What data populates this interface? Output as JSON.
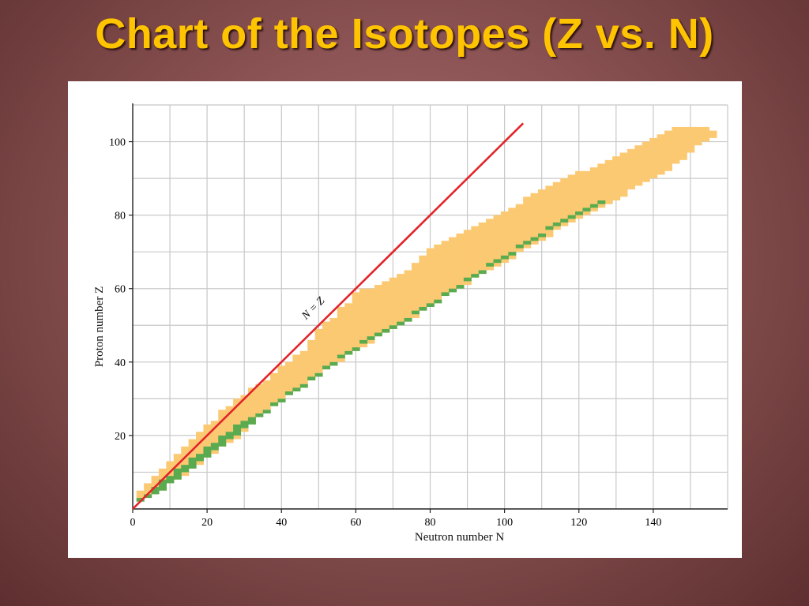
{
  "slide": {
    "title": "Chart of the Isotopes (Z vs. N)"
  },
  "colors": {
    "stable": "#5aab4f",
    "unstable": "#fcc973",
    "nz_line": "#e2242a",
    "grid": "#c8c8c8",
    "title": "#ffc400"
  },
  "chart_data": {
    "type": "scatter",
    "title": "",
    "xlabel": "Neutron number N",
    "ylabel": "Proton number Z",
    "xlim": [
      0,
      160
    ],
    "ylim": [
      0,
      110
    ],
    "x_ticks": [
      0,
      20,
      40,
      60,
      80,
      100,
      120,
      140
    ],
    "y_ticks": [
      20,
      40,
      60,
      80,
      100
    ],
    "grid": true,
    "reference_line": {
      "label": "N = Z",
      "from": [
        0,
        0
      ],
      "to": [
        105,
        105
      ]
    },
    "bands": [
      {
        "name": "unstable",
        "points": [
          [
            2,
            2,
            5
          ],
          [
            4,
            3,
            7
          ],
          [
            6,
            4,
            9
          ],
          [
            8,
            5,
            11
          ],
          [
            10,
            7,
            13
          ],
          [
            12,
            8,
            15
          ],
          [
            14,
            9,
            17
          ],
          [
            16,
            11,
            19
          ],
          [
            18,
            12,
            21
          ],
          [
            20,
            14,
            23
          ],
          [
            22,
            15,
            24
          ],
          [
            24,
            17,
            27
          ],
          [
            26,
            18,
            28
          ],
          [
            28,
            19,
            30
          ],
          [
            30,
            21,
            31
          ],
          [
            32,
            23,
            33
          ],
          [
            34,
            25,
            34
          ],
          [
            36,
            27,
            35
          ],
          [
            38,
            28,
            37
          ],
          [
            40,
            30,
            39
          ],
          [
            42,
            31,
            40
          ],
          [
            44,
            32,
            42
          ],
          [
            46,
            33,
            43
          ],
          [
            48,
            35,
            46
          ],
          [
            50,
            37,
            49
          ],
          [
            52,
            38,
            51
          ],
          [
            54,
            39,
            52
          ],
          [
            56,
            40,
            55
          ],
          [
            58,
            42,
            56
          ],
          [
            60,
            43,
            59
          ],
          [
            62,
            44,
            60
          ],
          [
            64,
            45,
            60
          ],
          [
            66,
            47,
            61
          ],
          [
            68,
            48,
            62
          ],
          [
            70,
            49,
            63
          ],
          [
            72,
            50,
            64
          ],
          [
            74,
            51,
            65
          ],
          [
            76,
            52,
            67
          ],
          [
            78,
            54,
            69
          ],
          [
            80,
            55,
            71
          ],
          [
            82,
            56,
            72
          ],
          [
            84,
            58,
            73
          ],
          [
            86,
            59,
            74
          ],
          [
            88,
            60,
            75
          ],
          [
            90,
            61,
            76
          ],
          [
            92,
            63,
            77
          ],
          [
            94,
            64,
            78
          ],
          [
            96,
            65,
            79
          ],
          [
            98,
            66,
            80
          ],
          [
            100,
            67,
            81
          ],
          [
            102,
            68,
            82
          ],
          [
            104,
            70,
            83
          ],
          [
            106,
            71,
            85
          ],
          [
            108,
            72,
            86
          ],
          [
            110,
            73,
            87
          ],
          [
            112,
            74,
            88
          ],
          [
            114,
            76,
            89
          ],
          [
            116,
            77,
            90
          ],
          [
            118,
            78,
            91
          ],
          [
            120,
            79,
            92
          ],
          [
            122,
            80,
            92
          ],
          [
            124,
            81,
            93
          ],
          [
            126,
            82,
            94
          ],
          [
            128,
            83,
            95
          ],
          [
            130,
            84,
            96
          ],
          [
            132,
            85,
            97
          ],
          [
            134,
            87,
            98
          ],
          [
            136,
            88,
            99
          ],
          [
            138,
            89,
            100
          ],
          [
            140,
            90,
            101
          ],
          [
            142,
            91,
            102
          ],
          [
            144,
            92,
            103
          ],
          [
            146,
            94,
            104
          ],
          [
            148,
            95,
            104
          ],
          [
            150,
            97,
            104
          ],
          [
            152,
            99,
            104
          ],
          [
            154,
            100,
            104
          ],
          [
            156,
            101,
            103
          ]
        ]
      },
      {
        "name": "stable",
        "points": [
          [
            2,
            2,
            3
          ],
          [
            4,
            3,
            4
          ],
          [
            6,
            4,
            6
          ],
          [
            8,
            5,
            8
          ],
          [
            10,
            7,
            9
          ],
          [
            12,
            8,
            11
          ],
          [
            14,
            10,
            12
          ],
          [
            16,
            11,
            14
          ],
          [
            18,
            13,
            15
          ],
          [
            20,
            14,
            17
          ],
          [
            22,
            16,
            18
          ],
          [
            24,
            17,
            20
          ],
          [
            26,
            19,
            21
          ],
          [
            28,
            20,
            23
          ],
          [
            30,
            22,
            24
          ],
          [
            32,
            23,
            25
          ],
          [
            34,
            25,
            26
          ],
          [
            36,
            26,
            27
          ],
          [
            38,
            28,
            29
          ],
          [
            40,
            29,
            30
          ],
          [
            42,
            31,
            32
          ],
          [
            44,
            32,
            33
          ],
          [
            46,
            33,
            34
          ],
          [
            48,
            35,
            36
          ],
          [
            50,
            36,
            37
          ],
          [
            52,
            38,
            39
          ],
          [
            54,
            39,
            40
          ],
          [
            56,
            41,
            42
          ],
          [
            58,
            42,
            43
          ],
          [
            60,
            43,
            44
          ],
          [
            62,
            45,
            46
          ],
          [
            64,
            46,
            47
          ],
          [
            66,
            47,
            48
          ],
          [
            68,
            48,
            49
          ],
          [
            70,
            49,
            50
          ],
          [
            72,
            50,
            51
          ],
          [
            74,
            51,
            52
          ],
          [
            76,
            53,
            54
          ],
          [
            78,
            54,
            55
          ],
          [
            80,
            55,
            56
          ],
          [
            82,
            56,
            57
          ],
          [
            84,
            58,
            59
          ],
          [
            86,
            59,
            60
          ],
          [
            88,
            60,
            61
          ],
          [
            90,
            62,
            63
          ],
          [
            92,
            63,
            64
          ],
          [
            94,
            64,
            65
          ],
          [
            96,
            66,
            67
          ],
          [
            98,
            67,
            68
          ],
          [
            100,
            68,
            69
          ],
          [
            102,
            69,
            70
          ],
          [
            104,
            71,
            72
          ],
          [
            106,
            72,
            73
          ],
          [
            108,
            73,
            74
          ],
          [
            110,
            74,
            75
          ],
          [
            112,
            76,
            77
          ],
          [
            114,
            77,
            78
          ],
          [
            116,
            78,
            79
          ],
          [
            118,
            79,
            80
          ],
          [
            120,
            80,
            81
          ],
          [
            122,
            81,
            82
          ],
          [
            124,
            82,
            83
          ],
          [
            126,
            83,
            84
          ]
        ]
      }
    ]
  }
}
